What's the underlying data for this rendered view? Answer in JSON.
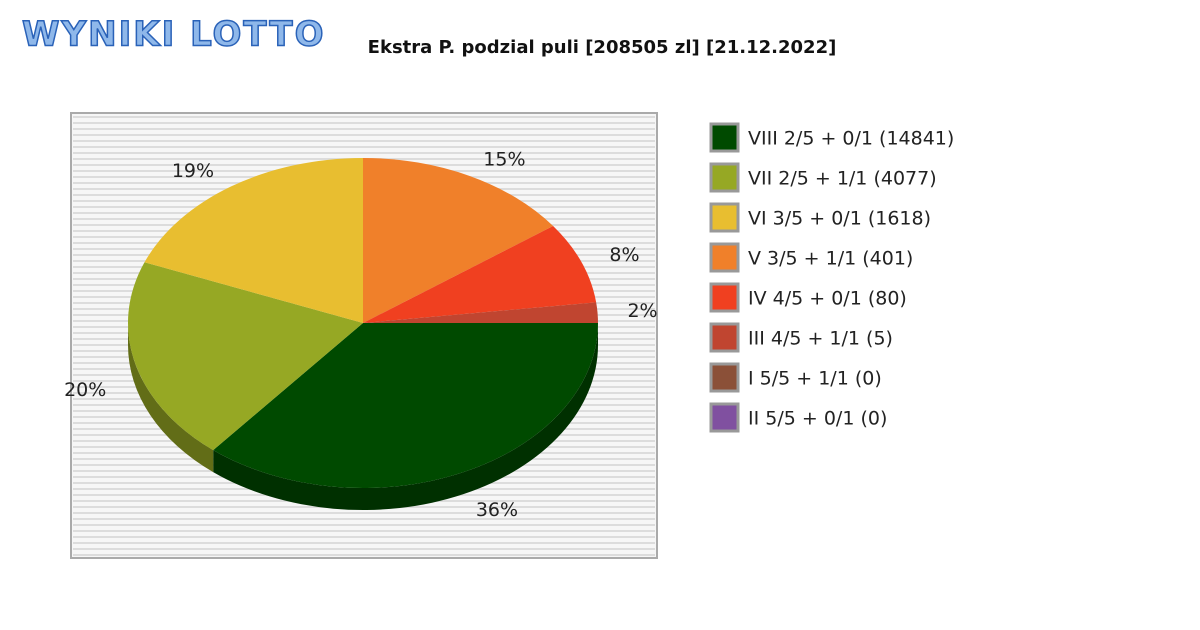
{
  "logo": "WYNIKI LOTTO",
  "chart_data": {
    "type": "pie",
    "title": "Ekstra P. podzial puli [208505 zl] [21.12.2022]",
    "categories": [
      "VIII 2/5 + 0/1 (14841)",
      "VII 2/5 + 1/1 (4077)",
      "VI 3/5 + 0/1 (1618)",
      "V 3/5 + 1/1 (401)",
      "IV 4/5 + 0/1 (80)",
      "III 4/5 + 1/1 (5)",
      "I 5/5 + 1/1 (0)",
      "II 5/5 + 0/1 (0)"
    ],
    "values": [
      36,
      20,
      19,
      15,
      8,
      2,
      0,
      0
    ],
    "value_labels": [
      "36%",
      "20%",
      "19%",
      "15%",
      "8%",
      "2%",
      null,
      null
    ],
    "colors": [
      "#004a00",
      "#96a824",
      "#e8be30",
      "#f0802a",
      "#f04020",
      "#c04530",
      "#8b5038",
      "#8050a0"
    ]
  }
}
